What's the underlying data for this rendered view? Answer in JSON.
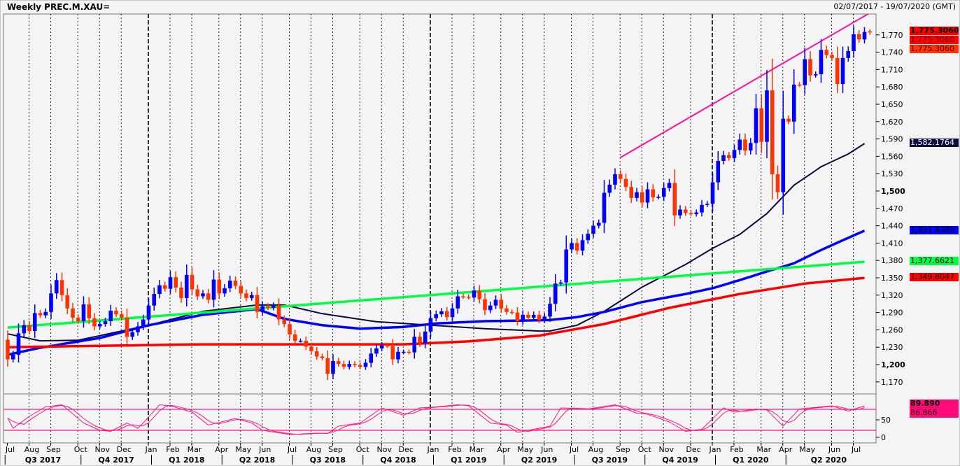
{
  "header": {
    "title": "Weekly PREC.M.XAU=",
    "date_range": "02/07/2017 - 19/07/2020 (GMT)"
  },
  "colors": {
    "up": "#0000ff",
    "down": "#ff3300",
    "ma_black": "#0a0a3c",
    "ma_blue": "#0000ff",
    "trend_green": "#00ff40",
    "ma_red": "#ff0000",
    "trendline_pink": "#ff1493",
    "oscillator": "#ff1480"
  },
  "value_tags": {
    "last_bold": "1,775.3060",
    "last_2": "1,775.3060",
    "last_3": "1,775.3060",
    "ma_black": "1,582.1764",
    "ma_blue": "1,431.4380",
    "trend_green": "1,377.6621",
    "ma_red": "1,349.8047",
    "osc_k": "89.890",
    "osc_d": "86.866"
  },
  "chart_data": {
    "type": "candlestick",
    "title": "Weekly PREC.M.XAU=",
    "frequency": "weekly",
    "ylim": [
      1150,
      1803
    ],
    "grid": "vertical dotted at months, dashed at years",
    "first_open": 1243,
    "closes": [
      1209,
      1217,
      1254,
      1268,
      1258,
      1289,
      1285,
      1291,
      1323,
      1346,
      1320,
      1297,
      1281,
      1275,
      1304,
      1280,
      1266,
      1270,
      1275,
      1293,
      1287,
      1281,
      1248,
      1256,
      1266,
      1278,
      1302,
      1322,
      1337,
      1331,
      1351,
      1333,
      1315,
      1355,
      1330,
      1318,
      1323,
      1312,
      1347,
      1323,
      1332,
      1345,
      1336,
      1323,
      1315,
      1320,
      1291,
      1301,
      1298,
      1302,
      1278,
      1270,
      1252,
      1241,
      1241,
      1231,
      1223,
      1214,
      1211,
      1184,
      1206,
      1201,
      1196,
      1201,
      1199,
      1196,
      1203,
      1219,
      1228,
      1233,
      1232,
      1209,
      1222,
      1222,
      1221,
      1248,
      1237,
      1257,
      1280,
      1287,
      1292,
      1282,
      1297,
      1318,
      1317,
      1316,
      1328,
      1313,
      1294,
      1302,
      1312,
      1297,
      1291,
      1290,
      1275,
      1286,
      1281,
      1286,
      1277,
      1283,
      1305,
      1340,
      1342,
      1399,
      1410,
      1397,
      1415,
      1426,
      1440,
      1445,
      1497,
      1511,
      1529,
      1521,
      1507,
      1488,
      1498,
      1480,
      1503,
      1489,
      1490,
      1505,
      1514,
      1458,
      1468,
      1462,
      1460,
      1463,
      1476,
      1478,
      1515,
      1552,
      1562,
      1557,
      1571,
      1589,
      1570,
      1583,
      1643,
      1585,
      1674,
      1529,
      1498,
      1625,
      1620,
      1684,
      1683,
      1728,
      1700,
      1702,
      1744,
      1735,
      1730,
      1685,
      1730,
      1742,
      1771,
      1762,
      1775
    ],
    "overlays": [
      {
        "key": "ma_black",
        "points": [
          [
            "2017-07-02",
            1253
          ],
          [
            "2017-08-13",
            1241
          ],
          [
            "2017-10-01",
            1242
          ],
          [
            "2017-12-31",
            1268
          ],
          [
            "2018-03-11",
            1292
          ],
          [
            "2018-05-20",
            1303
          ],
          [
            "2018-06-24",
            1303
          ],
          [
            "2018-08-12",
            1288
          ],
          [
            "2018-10-21",
            1274
          ],
          [
            "2018-12-30",
            1268
          ],
          [
            "2019-03-10",
            1262
          ],
          [
            "2019-05-19",
            1258
          ],
          [
            "2019-06-02",
            1258
          ],
          [
            "2019-07-07",
            1268
          ],
          [
            "2019-08-11",
            1292
          ],
          [
            "2019-09-29",
            1334
          ],
          [
            "2019-11-24",
            1373
          ],
          [
            "2019-12-29",
            1401
          ],
          [
            "2020-02-02",
            1425
          ],
          [
            "2020-03-08",
            1461
          ],
          [
            "2020-04-12",
            1510
          ],
          [
            "2020-05-17",
            1542
          ],
          [
            "2020-06-21",
            1564
          ],
          [
            "2020-07-12",
            1582.1764
          ]
        ]
      },
      {
        "key": "ma_blue",
        "points": [
          [
            "2017-07-02",
            1217
          ],
          [
            "2017-08-13",
            1229
          ],
          [
            "2017-10-29",
            1246
          ],
          [
            "2017-12-31",
            1268
          ],
          [
            "2018-03-11",
            1286
          ],
          [
            "2018-05-20",
            1296
          ],
          [
            "2018-06-24",
            1279
          ],
          [
            "2018-08-12",
            1268
          ],
          [
            "2018-09-30",
            1262
          ],
          [
            "2018-11-25",
            1265
          ],
          [
            "2019-01-06",
            1271
          ],
          [
            "2019-03-10",
            1275
          ],
          [
            "2019-04-28",
            1276
          ],
          [
            "2019-06-02",
            1277
          ],
          [
            "2019-07-07",
            1282
          ],
          [
            "2019-08-11",
            1291
          ],
          [
            "2019-09-29",
            1308
          ],
          [
            "2019-11-24",
            1322
          ],
          [
            "2019-12-29",
            1332
          ],
          [
            "2020-02-02",
            1346
          ],
          [
            "2020-03-08",
            1361
          ],
          [
            "2020-04-12",
            1375
          ],
          [
            "2020-05-17",
            1398
          ],
          [
            "2020-06-21",
            1419
          ],
          [
            "2020-07-12",
            1431.438
          ]
        ]
      },
      {
        "key": "trend_green",
        "points": [
          [
            "2017-07-02",
            1264
          ],
          [
            "2020-07-12",
            1377.6621
          ]
        ]
      },
      {
        "key": "ma_red",
        "points": [
          [
            "2017-07-02",
            1230
          ],
          [
            "2018-03-11",
            1235
          ],
          [
            "2018-11-25",
            1235
          ],
          [
            "2019-02-17",
            1240
          ],
          [
            "2019-05-19",
            1250
          ],
          [
            "2019-08-11",
            1270
          ],
          [
            "2019-11-03",
            1298
          ],
          [
            "2020-02-02",
            1322
          ],
          [
            "2020-04-26",
            1340
          ],
          [
            "2020-07-12",
            1349.8047
          ]
        ]
      },
      {
        "key": "trendline_pink",
        "points": [
          [
            "2019-09-01",
            1558
          ],
          [
            "2020-07-19",
            1808
          ]
        ]
      }
    ],
    "oscillator": {
      "ylim": [
        0,
        100
      ],
      "levels": [
        80,
        20
      ],
      "ticks": [
        "50",
        "0"
      ],
      "k_points": [
        [
          "2017-07-02",
          55
        ],
        [
          "2017-07-09",
          26
        ],
        [
          "2017-07-30",
          60
        ],
        [
          "2017-08-20",
          87
        ],
        [
          "2017-09-10",
          93
        ],
        [
          "2017-10-08",
          41
        ],
        [
          "2017-10-29",
          20
        ],
        [
          "2017-11-12",
          17
        ],
        [
          "2017-12-03",
          41
        ],
        [
          "2017-12-17",
          26
        ],
        [
          "2017-12-24",
          41
        ],
        [
          "2018-01-14",
          93
        ],
        [
          "2018-01-28",
          90
        ],
        [
          "2018-02-25",
          72
        ],
        [
          "2018-03-18",
          35
        ],
        [
          "2018-04-22",
          54
        ],
        [
          "2018-05-13",
          41
        ],
        [
          "2018-05-27",
          20
        ],
        [
          "2018-07-01",
          8
        ],
        [
          "2018-08-05",
          12
        ],
        [
          "2018-08-19",
          11
        ],
        [
          "2018-09-02",
          32
        ],
        [
          "2018-09-30",
          41
        ],
        [
          "2018-10-28",
          84
        ],
        [
          "2018-11-25",
          63
        ],
        [
          "2018-12-16",
          84
        ],
        [
          "2019-01-06",
          87
        ],
        [
          "2019-02-03",
          93
        ],
        [
          "2019-02-17",
          90
        ],
        [
          "2019-03-17",
          41
        ],
        [
          "2019-04-07",
          35
        ],
        [
          "2019-04-21",
          14
        ],
        [
          "2019-05-12",
          23
        ],
        [
          "2019-06-02",
          32
        ],
        [
          "2019-06-16",
          84
        ],
        [
          "2019-07-21",
          81
        ],
        [
          "2019-08-25",
          93
        ],
        [
          "2019-09-22",
          69
        ],
        [
          "2019-10-06",
          66
        ],
        [
          "2019-11-03",
          44
        ],
        [
          "2019-11-24",
          17
        ],
        [
          "2019-12-15",
          23
        ],
        [
          "2020-01-12",
          84
        ],
        [
          "2020-01-26",
          72
        ],
        [
          "2020-02-23",
          81
        ],
        [
          "2020-03-08",
          78
        ],
        [
          "2020-03-29",
          32
        ],
        [
          "2020-04-19",
          81
        ],
        [
          "2020-05-31",
          90
        ],
        [
          "2020-06-21",
          75
        ],
        [
          "2020-07-12",
          89.89
        ]
      ]
    },
    "y_ticks": [
      "1,170",
      "1,200",
      "1,230",
      "1,260",
      "1,290",
      "1,320",
      "1,350",
      "1,380",
      "1,410",
      "1,440",
      "1,470",
      "1,500",
      "1,530",
      "1,560",
      "1,590",
      "1,620",
      "1,650",
      "1,680",
      "1,710",
      "1,740",
      "1,770"
    ],
    "y_ticks_bold": [
      "1,200",
      "1,500"
    ],
    "x_months": [
      [
        "Jul",
        "2017-07-01"
      ],
      [
        "Aug",
        "2017-08-01"
      ],
      [
        "Sep",
        "2017-09-01"
      ],
      [
        "Oct",
        "2017-10-01"
      ],
      [
        "Nov",
        "2017-11-01"
      ],
      [
        "Dec",
        "2017-12-01"
      ],
      [
        "Jan",
        "2018-01-01"
      ],
      [
        "Feb",
        "2018-02-01"
      ],
      [
        "Mar",
        "2018-03-01"
      ],
      [
        "Apr",
        "2018-04-01"
      ],
      [
        "May",
        "2018-05-01"
      ],
      [
        "Jun",
        "2018-06-01"
      ],
      [
        "Jul",
        "2018-07-01"
      ],
      [
        "Aug",
        "2018-08-01"
      ],
      [
        "Sep",
        "2018-09-01"
      ],
      [
        "Oct",
        "2018-10-01"
      ],
      [
        "Nov",
        "2018-11-01"
      ],
      [
        "Dec",
        "2018-12-01"
      ],
      [
        "Jan",
        "2019-01-01"
      ],
      [
        "Feb",
        "2019-02-01"
      ],
      [
        "Mar",
        "2019-03-01"
      ],
      [
        "Apr",
        "2019-04-01"
      ],
      [
        "May",
        "2019-05-01"
      ],
      [
        "Jun",
        "2019-06-01"
      ],
      [
        "Jul",
        "2019-07-01"
      ],
      [
        "Aug",
        "2019-08-01"
      ],
      [
        "Sep",
        "2019-09-01"
      ],
      [
        "Oct",
        "2019-10-01"
      ],
      [
        "Nov",
        "2019-11-01"
      ],
      [
        "Dec",
        "2019-12-01"
      ],
      [
        "Jan",
        "2020-01-01"
      ],
      [
        "Feb",
        "2020-02-01"
      ],
      [
        "Mar",
        "2020-03-01"
      ],
      [
        "Apr",
        "2020-04-01"
      ],
      [
        "May",
        "2020-05-01"
      ],
      [
        "Jun",
        "2020-06-01"
      ],
      [
        "Jul",
        "2020-07-01"
      ]
    ],
    "x_quarters": [
      [
        "Q3 2017",
        "2017-07-01"
      ],
      [
        "Q4 2017",
        "2017-10-01"
      ],
      [
        "Q1 2018",
        "2018-01-01"
      ],
      [
        "Q2 2018",
        "2018-04-01"
      ],
      [
        "Q3 2018",
        "2018-07-01"
      ],
      [
        "Q4 2018",
        "2018-10-01"
      ],
      [
        "Q1 2019",
        "2019-01-01"
      ],
      [
        "Q2 2019",
        "2019-04-01"
      ],
      [
        "Q3 2019",
        "2019-07-01"
      ],
      [
        "Q4 2019",
        "2019-10-01"
      ],
      [
        "Q1 2020",
        "2020-01-01"
      ],
      [
        "Q2 2020",
        "2020-04-01"
      ]
    ]
  }
}
